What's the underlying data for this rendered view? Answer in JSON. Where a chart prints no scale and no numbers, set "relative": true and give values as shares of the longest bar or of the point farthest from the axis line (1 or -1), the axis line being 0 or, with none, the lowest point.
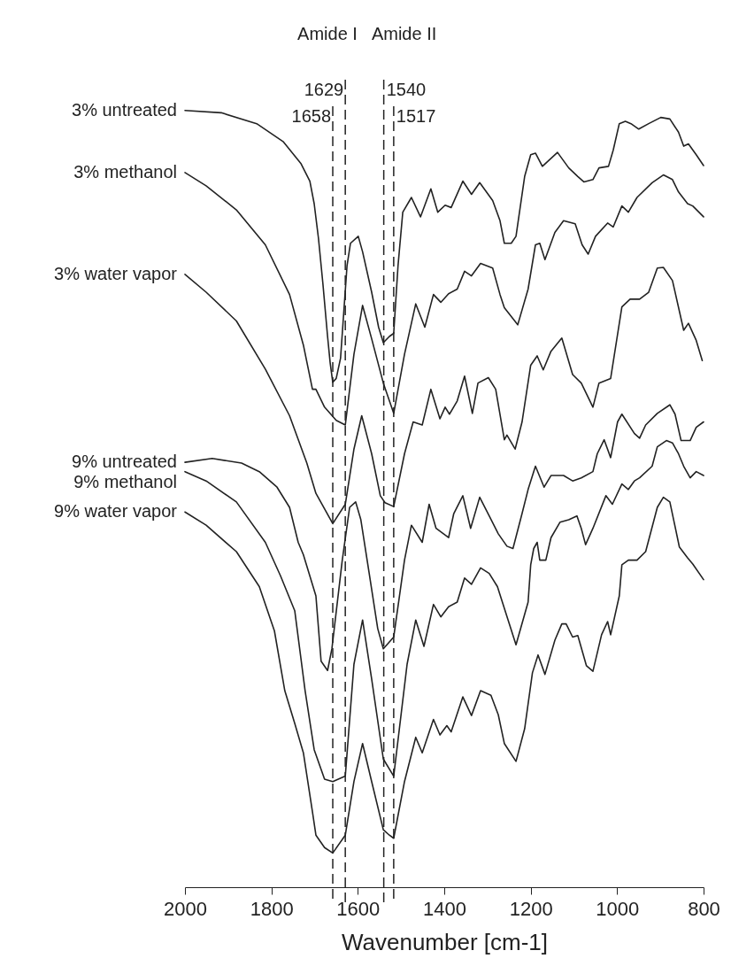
{
  "chart_data": {
    "type": "line",
    "relative": true,
    "xlabel": "Wavenumber [cm-1]",
    "xlim": [
      2000,
      800
    ],
    "xticks": [
      2000,
      1800,
      1600,
      1400,
      1200,
      1000,
      800
    ],
    "grid": false,
    "legend": false,
    "annotations": [
      "Amide I",
      "Amide II"
    ],
    "ref_lines": [
      {
        "axis": "x",
        "value": 1658,
        "label": "1658",
        "line_style": "dashed",
        "color": "#222222"
      },
      {
        "axis": "x",
        "value": 1629,
        "label": "1629",
        "line_style": "dashed",
        "color": "#222222"
      },
      {
        "axis": "x",
        "value": 1540,
        "label": "1540",
        "line_style": "dashed",
        "color": "#222222"
      },
      {
        "axis": "x",
        "value": 1517,
        "label": "1517",
        "line_style": "dashed",
        "color": "#222222"
      }
    ],
    "series": [
      {
        "name": "3% untreated",
        "color": "#222222",
        "x": [
          2000,
          1916,
          1834,
          1773,
          1732,
          1711,
          1701,
          1691,
          1681,
          1670,
          1664,
          1658,
          1650,
          1640,
          1625,
          1617,
          1599,
          1589,
          1568,
          1552,
          1541,
          1527,
          1517,
          1507,
          1496,
          1476,
          1455,
          1431,
          1415,
          1398,
          1384,
          1357,
          1337,
          1318,
          1288,
          1271,
          1261,
          1245,
          1234,
          1214,
          1200,
          1189,
          1173,
          1138,
          1112,
          1091,
          1077,
          1056,
          1042,
          1020,
          1009,
          995,
          981,
          968,
          950,
          927,
          899,
          878,
          858,
          846,
          835,
          817,
          800
        ],
        "values": [
          1.0,
          0.997,
          0.983,
          0.96,
          0.932,
          0.909,
          0.88,
          0.835,
          0.778,
          0.709,
          0.675,
          0.65,
          0.655,
          0.681,
          0.8,
          0.829,
          0.838,
          0.818,
          0.766,
          0.721,
          0.701,
          0.709,
          0.713,
          0.8,
          0.869,
          0.888,
          0.863,
          0.899,
          0.869,
          0.878,
          0.875,
          0.909,
          0.892,
          0.907,
          0.884,
          0.858,
          0.829,
          0.829,
          0.838,
          0.915,
          0.943,
          0.945,
          0.928,
          0.946,
          0.926,
          0.915,
          0.908,
          0.911,
          0.926,
          0.928,
          0.949,
          0.983,
          0.986,
          0.983,
          0.976,
          0.983,
          0.991,
          0.989,
          0.972,
          0.954,
          0.957,
          0.943,
          0.929
        ]
      },
      {
        "name": "3% methanol",
        "color": "#222222",
        "x": [
          2000,
          1951,
          1881,
          1814,
          1758,
          1726,
          1705,
          1697,
          1677,
          1650,
          1629,
          1609,
          1589,
          1568,
          1541,
          1517,
          1492,
          1466,
          1445,
          1425,
          1408,
          1390,
          1370,
          1353,
          1337,
          1316,
          1288,
          1271,
          1261,
          1230,
          1206,
          1189,
          1179,
          1167,
          1144,
          1124,
          1097,
          1081,
          1067,
          1050,
          1022,
          1009,
          989,
          974,
          954,
          919,
          893,
          872,
          858,
          837,
          825,
          800
        ],
        "values": [
          0.92,
          0.903,
          0.872,
          0.827,
          0.763,
          0.698,
          0.641,
          0.641,
          0.618,
          0.601,
          0.595,
          0.686,
          0.749,
          0.706,
          0.649,
          0.61,
          0.686,
          0.751,
          0.721,
          0.763,
          0.753,
          0.764,
          0.77,
          0.793,
          0.787,
          0.803,
          0.797,
          0.763,
          0.746,
          0.724,
          0.77,
          0.827,
          0.829,
          0.808,
          0.843,
          0.858,
          0.854,
          0.827,
          0.815,
          0.838,
          0.855,
          0.85,
          0.877,
          0.869,
          0.888,
          0.907,
          0.917,
          0.911,
          0.895,
          0.88,
          0.877,
          0.863
        ]
      },
      {
        "name": "3% water vapor",
        "color": "#222222",
        "x": [
          2000,
          1951,
          1881,
          1814,
          1758,
          1718,
          1697,
          1658,
          1629,
          1609,
          1591,
          1568,
          1548,
          1537,
          1517,
          1492,
          1472,
          1451,
          1431,
          1410,
          1398,
          1388,
          1370,
          1353,
          1335,
          1322,
          1298,
          1281,
          1261,
          1255,
          1236,
          1220,
          1200,
          1185,
          1171,
          1153,
          1128,
          1103,
          1083,
          1056,
          1042,
          1015,
          989,
          970,
          948,
          927,
          907,
          893,
          872,
          846,
          835,
          817,
          803
        ],
        "values": [
          0.789,
          0.766,
          0.729,
          0.667,
          0.607,
          0.546,
          0.507,
          0.468,
          0.493,
          0.564,
          0.607,
          0.558,
          0.504,
          0.495,
          0.49,
          0.558,
          0.599,
          0.595,
          0.641,
          0.603,
          0.618,
          0.609,
          0.626,
          0.658,
          0.61,
          0.649,
          0.656,
          0.641,
          0.576,
          0.582,
          0.564,
          0.599,
          0.672,
          0.684,
          0.666,
          0.69,
          0.707,
          0.66,
          0.649,
          0.618,
          0.649,
          0.655,
          0.747,
          0.757,
          0.757,
          0.766,
          0.797,
          0.798,
          0.781,
          0.717,
          0.726,
          0.704,
          0.678
        ]
      },
      {
        "name": "9% untreated",
        "color": "#222222",
        "x": [
          2000,
          1937,
          1869,
          1828,
          1787,
          1758,
          1738,
          1726,
          1697,
          1685,
          1670,
          1660,
          1636,
          1619,
          1605,
          1593,
          1574,
          1554,
          1541,
          1517,
          1492,
          1476,
          1451,
          1435,
          1419,
          1390,
          1378,
          1357,
          1339,
          1318,
          1296,
          1275,
          1255,
          1241,
          1220,
          1206,
          1189,
          1169,
          1153,
          1124,
          1103,
          1083,
          1056,
          1046,
          1030,
          1015,
          999,
          989,
          960,
          948,
          934,
          907,
          878,
          866,
          852,
          831,
          817,
          800
        ],
        "values": [
          0.547,
          0.552,
          0.546,
          0.535,
          0.515,
          0.489,
          0.444,
          0.428,
          0.375,
          0.291,
          0.279,
          0.307,
          0.421,
          0.489,
          0.496,
          0.473,
          0.405,
          0.333,
          0.307,
          0.322,
          0.421,
          0.466,
          0.444,
          0.493,
          0.462,
          0.45,
          0.481,
          0.504,
          0.462,
          0.502,
          0.478,
          0.455,
          0.439,
          0.436,
          0.481,
          0.512,
          0.542,
          0.515,
          0.53,
          0.53,
          0.523,
          0.527,
          0.535,
          0.558,
          0.576,
          0.553,
          0.599,
          0.609,
          0.584,
          0.578,
          0.595,
          0.61,
          0.621,
          0.609,
          0.575,
          0.575,
          0.592,
          0.599
        ]
      },
      {
        "name": "9% methanol",
        "color": "#222222",
        "x": [
          2000,
          1951,
          1881,
          1814,
          1779,
          1746,
          1722,
          1701,
          1677,
          1658,
          1629,
          1609,
          1589,
          1568,
          1541,
          1517,
          1486,
          1466,
          1447,
          1425,
          1408,
          1390,
          1370,
          1353,
          1337,
          1316,
          1296,
          1277,
          1261,
          1234,
          1206,
          1200,
          1193,
          1185,
          1179,
          1165,
          1153,
          1132,
          1112,
          1093,
          1083,
          1073,
          1056,
          1026,
          1011,
          989,
          974,
          960,
          948,
          919,
          907,
          886,
          872,
          858,
          846,
          831,
          817,
          800
        ],
        "values": [
          0.535,
          0.523,
          0.496,
          0.444,
          0.401,
          0.356,
          0.253,
          0.177,
          0.139,
          0.136,
          0.143,
          0.287,
          0.344,
          0.268,
          0.165,
          0.143,
          0.287,
          0.344,
          0.31,
          0.364,
          0.348,
          0.361,
          0.367,
          0.398,
          0.39,
          0.411,
          0.404,
          0.387,
          0.359,
          0.312,
          0.367,
          0.415,
          0.436,
          0.444,
          0.421,
          0.421,
          0.45,
          0.47,
          0.473,
          0.478,
          0.462,
          0.441,
          0.462,
          0.504,
          0.493,
          0.519,
          0.512,
          0.523,
          0.527,
          0.542,
          0.567,
          0.575,
          0.572,
          0.558,
          0.542,
          0.527,
          0.535,
          0.53
        ]
      },
      {
        "name": "9% water vapor",
        "color": "#222222",
        "x": [
          2000,
          1951,
          1881,
          1828,
          1793,
          1769,
          1746,
          1726,
          1705,
          1697,
          1677,
          1658,
          1629,
          1609,
          1589,
          1568,
          1541,
          1527,
          1517,
          1492,
          1466,
          1451,
          1425,
          1410,
          1394,
          1384,
          1357,
          1337,
          1316,
          1292,
          1275,
          1261,
          1234,
          1214,
          1196,
          1183,
          1167,
          1144,
          1128,
          1118,
          1103,
          1091,
          1071,
          1056,
          1036,
          1022,
          1015,
          995,
          989,
          974,
          954,
          934,
          907,
          893,
          878,
          856,
          837,
          825,
          800
        ],
        "values": [
          0.483,
          0.466,
          0.432,
          0.387,
          0.33,
          0.253,
          0.211,
          0.173,
          0.097,
          0.067,
          0.051,
          0.044,
          0.067,
          0.136,
          0.185,
          0.136,
          0.074,
          0.067,
          0.063,
          0.136,
          0.193,
          0.173,
          0.216,
          0.196,
          0.208,
          0.2,
          0.245,
          0.221,
          0.253,
          0.247,
          0.222,
          0.185,
          0.162,
          0.204,
          0.276,
          0.299,
          0.274,
          0.318,
          0.339,
          0.339,
          0.322,
          0.324,
          0.285,
          0.278,
          0.325,
          0.342,
          0.325,
          0.375,
          0.415,
          0.421,
          0.421,
          0.432,
          0.489,
          0.502,
          0.496,
          0.438,
          0.424,
          0.416,
          0.396
        ]
      }
    ]
  }
}
